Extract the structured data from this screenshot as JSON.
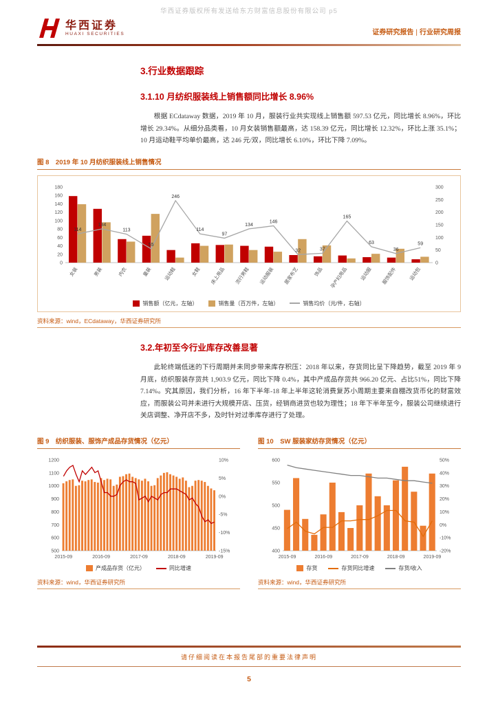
{
  "watermark": "华西证券版权所有发送给东方财富信息股份有限公司 p5",
  "header": {
    "logo_cn": "华西证券",
    "logo_en": "HUAXI SECURITIES",
    "report_type": "证券研究报告",
    "divider": "|",
    "report_subtype": "行业研究周报"
  },
  "sections": {
    "main_title": "3.行业数据跟踪",
    "sub1_title": "3.1.10 月纺织服装线上销售额同比增长 8.96%",
    "sub1_body": "根据 ECdataway 数据，2019 年 10 月，服装行业共实现线上销售额 597.53 亿元，同比增长 8.96%，环比增长 29.34%。从细分品类看，10 月女装销售额最高，达 158.39 亿元，同比增长 12.32%，环比上涨 35.1%；10 月运动鞋平均单价最高，达 246 元/双，同比增长 6.10%，环比下降 7.09%。",
    "sub2_title": "3.2.年初至今行业库存改善显著",
    "sub2_body": "此轮终端低迷的下行周期并未同步带来库存积压：2018 年以来，存货同比呈下降趋势，截至 2019 年 9 月底，纺织服装存货共 1,903.9 亿元，同比下降 0.4%，其中产成品存货共 966.20 亿元、占比51%，同比下降 7.14%。究其原因，我们分析，16 年下半年-18 年上半年这轮消费复苏小周期主要来自棚改货币化的财富效应，而服装公司并未进行大规模开店、压货，经销商进货也较为理性；18 年下半年至今，服装公司继续进行关店调整、净开店不多，及时针对过季库存进行了处理。"
  },
  "footer": {
    "disclaimer": "请仔细阅读在本报告尾部的重要法律声明",
    "page_number": "5"
  },
  "chart_data": [
    {
      "id": "fig8",
      "type": "bar+line",
      "title": "图 8　2019 年 10 月纺织服装线上销售情况",
      "source": "资料来源：wind，ECdataway，华西证券研究所",
      "rotate_xlabels": true,
      "left_axis": {
        "min": 0,
        "max": 180,
        "step": 20
      },
      "right_axis": {
        "min": 0,
        "max": 300,
        "step": 50
      },
      "categories": [
        "女装",
        "男装",
        "内衣",
        "童装",
        "运动鞋",
        "女鞋",
        "床上用品",
        "流行男鞋",
        "运动服装",
        "居家布艺",
        "饰品",
        "孕产妇用品",
        "运动服",
        "服饰配件",
        "运动包"
      ],
      "series": [
        {
          "name": "销售额（亿元，左轴）",
          "type": "bar",
          "color": "#c00000",
          "values": [
            158.4,
            128,
            56,
            64,
            30,
            46,
            42,
            40,
            38,
            18,
            15,
            17,
            13,
            12,
            8
          ]
        },
        {
          "name": "销售量（百万件，左轴）",
          "type": "bar",
          "color": "#d0a25f",
          "values": [
            139,
            96,
            50,
            116,
            12,
            40,
            43,
            30,
            26,
            56,
            41,
            10,
            21,
            33,
            14
          ]
        },
        {
          "name": "销售均价（元/件，右轴）",
          "type": "line",
          "axis": "right",
          "color": "#a6a6a6",
          "show_labels": true,
          "values": [
            114,
            134,
            113,
            55,
            246,
            114,
            97,
            134,
            146,
            32,
            37,
            165,
            63,
            36,
            59
          ]
        }
      ]
    },
    {
      "id": "fig9",
      "type": "bar+line",
      "title": "图 9　纺织服装、服饰产成品存货情况（亿元）",
      "source": "资料来源：wind，华西证券研究所",
      "rotate_xlabels": false,
      "left_axis": {
        "min": 500,
        "max": 1200,
        "step": 100
      },
      "right_axis": {
        "min": -15,
        "max": 10,
        "step": 5,
        "suffix": "%"
      },
      "categories": [
        "2015-09",
        "2015-10",
        "2015-11",
        "2015-12",
        "2016-01",
        "2016-02",
        "2016-03",
        "2016-04",
        "2016-05",
        "2016-06",
        "2016-07",
        "2016-08",
        "2016-09",
        "2016-10",
        "2016-11",
        "2016-12",
        "2017-01",
        "2017-02",
        "2017-03",
        "2017-04",
        "2017-05",
        "2017-06",
        "2017-07",
        "2017-08",
        "2017-09",
        "2017-10",
        "2017-11",
        "2017-12",
        "2018-01",
        "2018-02",
        "2018-03",
        "2018-04",
        "2018-05",
        "2018-06",
        "2018-07",
        "2018-08",
        "2018-09",
        "2018-10",
        "2018-11",
        "2018-12",
        "2019-01",
        "2019-02",
        "2019-03",
        "2019-04",
        "2019-05",
        "2019-06",
        "2019-07",
        "2019-08",
        "2019-09"
      ],
      "xticks": [
        {
          "i": 0,
          "label": "2015-09"
        },
        {
          "i": 12,
          "label": "2016-09"
        },
        {
          "i": 24,
          "label": "2017-09"
        },
        {
          "i": 36,
          "label": "2018-09"
        },
        {
          "i": 48,
          "label": "2019-09"
        }
      ],
      "series": [
        {
          "name": "产成品存货（亿元）",
          "type": "bar",
          "color": "#ed7d31",
          "values": [
            1020,
            1035,
            1045,
            1050,
            1000,
            1005,
            1040,
            1035,
            1045,
            1050,
            1030,
            1025,
            1060,
            1045,
            1055,
            1050,
            1000,
            1010,
            1070,
            1075,
            1090,
            1095,
            1070,
            1060,
            1050,
            1040,
            1055,
            1035,
            1000,
            1005,
            1060,
            1080,
            1100,
            1105,
            1090,
            1080,
            1070,
            1055,
            1065,
            1040,
            990,
            1000,
            1040,
            1045,
            1040,
            1030,
            1000,
            980,
            966
          ]
        },
        {
          "name": "同比增速",
          "type": "line",
          "axis": "right",
          "color": "#c00000",
          "values": [
            5.5,
            7,
            8,
            8.5,
            6,
            4,
            7,
            6,
            7,
            8,
            6.5,
            7,
            4,
            1,
            1,
            0,
            0,
            0.5,
            3,
            4,
            4.5,
            4,
            4,
            3.5,
            -1,
            -0.5,
            0,
            -1.5,
            0,
            -0.5,
            -1,
            0.5,
            1,
            1,
            2,
            2,
            2,
            1.5,
            1,
            0.5,
            -1,
            -0.5,
            -2,
            -3,
            -5.5,
            -7,
            -6.5,
            -7.5,
            -7.1
          ]
        }
      ]
    },
    {
      "id": "fig10",
      "type": "bar+line",
      "title": "图 10　SW 服装家纺存货情况（亿元）",
      "source": "资料来源：wind，华西证券研究所",
      "rotate_xlabels": false,
      "left_axis": {
        "min": 400,
        "max": 600,
        "step": 50
      },
      "right_axis": {
        "min": -20,
        "max": 50,
        "step": 10,
        "suffix": "%"
      },
      "categories": [
        "2015-09",
        "2015-12",
        "2016-03",
        "2016-06",
        "2016-09",
        "2016-12",
        "2017-03",
        "2017-06",
        "2017-09",
        "2017-12",
        "2018-03",
        "2018-06",
        "2018-09",
        "2018-12",
        "2019-03",
        "2019-06",
        "2019-09"
      ],
      "xticks": [
        {
          "i": 0,
          "label": "2015-09"
        },
        {
          "i": 4,
          "label": "2016-09"
        },
        {
          "i": 8,
          "label": "2017-09"
        },
        {
          "i": 12,
          "label": "2018-09"
        },
        {
          "i": 16,
          "label": "2019-09"
        }
      ],
      "series": [
        {
          "name": "存货",
          "type": "bar",
          "color": "#ed7d31",
          "values": [
            490,
            560,
            470,
            435,
            480,
            550,
            485,
            450,
            500,
            570,
            520,
            500,
            555,
            585,
            530,
            455,
            570
          ]
        },
        {
          "name": "存货同比增速",
          "type": "line",
          "axis": "right",
          "color": "#e36c09",
          "values": [
            -3,
            2,
            -5,
            -7,
            -2,
            -2,
            3,
            3,
            4,
            4,
            7,
            11,
            11,
            3,
            2,
            -9,
            3
          ]
        },
        {
          "name": "存货/收入",
          "type": "line",
          "axis": "right",
          "color": "#808080",
          "values": [
            46,
            44,
            43,
            42,
            41,
            40,
            39,
            38,
            38,
            37,
            36,
            36,
            35,
            34,
            34,
            33,
            32
          ]
        }
      ]
    }
  ]
}
